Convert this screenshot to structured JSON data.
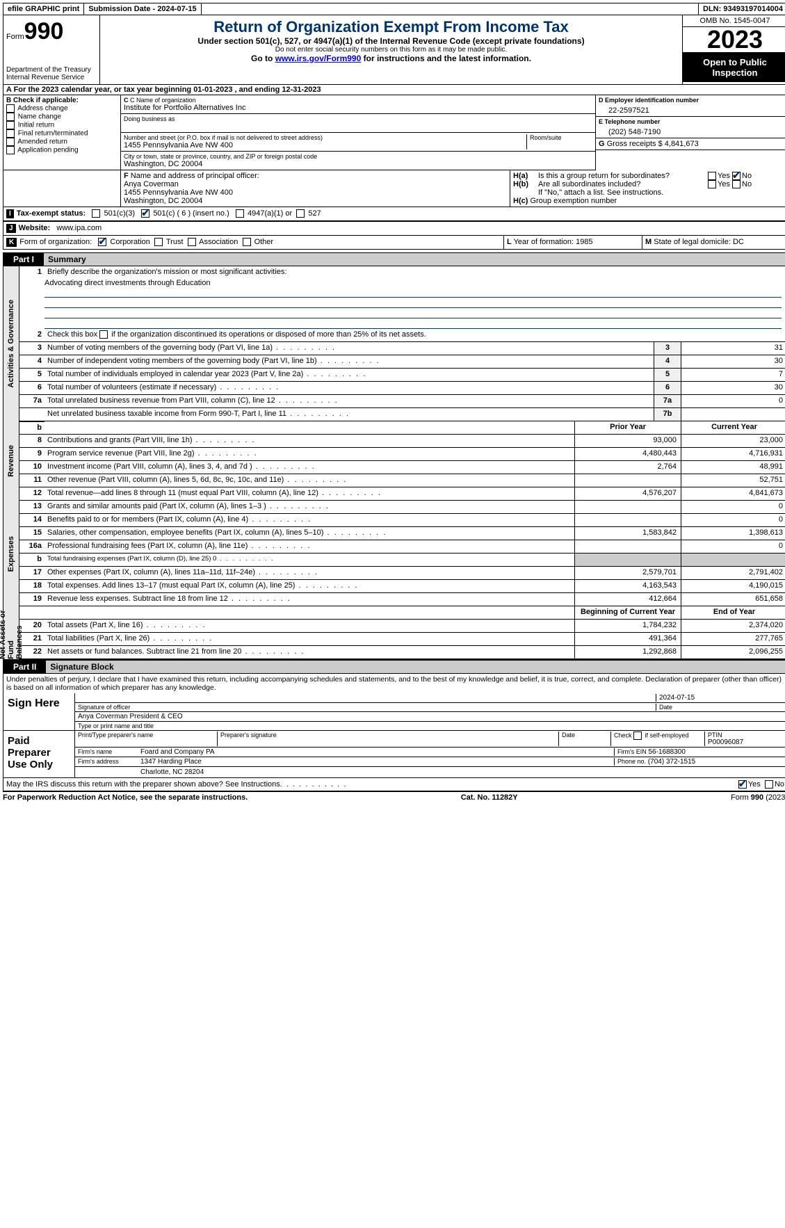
{
  "topbar": {
    "efile": "efile GRAPHIC print",
    "submission": "Submission Date - 2024-07-15",
    "dln": "DLN: 93493197014004"
  },
  "header": {
    "form_label": "Form",
    "form_num": "990",
    "title": "Return of Organization Exempt From Income Tax",
    "sub1": "Under section 501(c), 527, or 4947(a)(1) of the Internal Revenue Code (except private foundations)",
    "sub2": "Do not enter social security numbers on this form as it may be made public.",
    "sub3_a": "Go to ",
    "sub3_link": "www.irs.gov/Form990",
    "sub3_b": " for instructions and the latest information.",
    "dept": "Department of the Treasury\nInternal Revenue Service",
    "omb": "OMB No. 1545-0047",
    "year": "2023",
    "open": "Open to Public Inspection"
  },
  "rowA": "A For the 2023 calendar year, or tax year beginning 01-01-2023   , and ending 12-31-2023",
  "boxB": {
    "title": "B Check if applicable:",
    "opts": [
      "Address change",
      "Name change",
      "Initial return",
      "Final return/terminated",
      "Amended return",
      "Application pending"
    ]
  },
  "boxC": {
    "name_lbl": "C Name of organization",
    "name": "Institute for Portfolio Alternatives Inc",
    "dba_lbl": "Doing business as",
    "addr_lbl": "Number and street (or P.O. box if mail is not delivered to street address)",
    "addr": "1455 Pennsylvania Ave NW 400",
    "room_lbl": "Room/suite",
    "city_lbl": "City or town, state or province, country, and ZIP or foreign postal code",
    "city": "Washington, DC  20004"
  },
  "boxD": {
    "lbl": "D Employer identification number",
    "val": "22-2597521"
  },
  "boxE": {
    "lbl": "E Telephone number",
    "val": "(202) 548-7190"
  },
  "boxG": {
    "lbl": "G",
    "text": "Gross receipts $ 4,841,673"
  },
  "boxF": {
    "lbl": "F  Name and address of principal officer:",
    "name": "Anya Coverman",
    "addr1": "1455 Pennsylvania Ave NW 400",
    "addr2": "Washington, DC  20004"
  },
  "boxH": {
    "a": "Is this a group return for subordinates?",
    "b": "Are all subordinates included?",
    "note": "If \"No,\" attach a list. See instructions.",
    "c": "Group exemption number",
    "yes": "Yes",
    "no": "No"
  },
  "rowI": {
    "lbl": "Tax-exempt status:",
    "o1": "501(c)(3)",
    "o2": "501(c) ( 6 ) (insert no.)",
    "o3": "4947(a)(1) or",
    "o4": "527"
  },
  "rowJ": {
    "lbl": "Website:",
    "val": "www.ipa.com"
  },
  "rowK": {
    "lbl": "Form of organization:",
    "o1": "Corporation",
    "o2": "Trust",
    "o3": "Association",
    "o4": "Other"
  },
  "rowL": {
    "lbl": "L",
    "text": "Year of formation: 1985"
  },
  "rowM": {
    "lbl": "M",
    "text": "State of legal domicile: DC"
  },
  "part1": {
    "tab": "Part I",
    "title": "Summary"
  },
  "summary": {
    "l1_lbl": "Briefly describe the organization's mission or most significant activities:",
    "l1_val": "Advocating direct investments through Education",
    "l2": "Check this box      if the organization discontinued its operations or disposed of more than 25% of its net assets.",
    "lines_gov": [
      {
        "n": "3",
        "t": "Number of voting members of the governing body (Part VI, line 1a)",
        "b": "3",
        "v": "31"
      },
      {
        "n": "4",
        "t": "Number of independent voting members of the governing body (Part VI, line 1b)",
        "b": "4",
        "v": "30"
      },
      {
        "n": "5",
        "t": "Total number of individuals employed in calendar year 2023 (Part V, line 2a)",
        "b": "5",
        "v": "7"
      },
      {
        "n": "6",
        "t": "Total number of volunteers (estimate if necessary)",
        "b": "6",
        "v": "30"
      },
      {
        "n": "7a",
        "t": "Total unrelated business revenue from Part VIII, column (C), line 12",
        "b": "7a",
        "v": "0"
      },
      {
        "n": "",
        "t": "Net unrelated business taxable income from Form 990-T, Part I, line 11",
        "b": "7b",
        "v": ""
      }
    ],
    "prior_hdr": "Prior Year",
    "curr_hdr": "Current Year",
    "rev": [
      {
        "n": "8",
        "t": "Contributions and grants (Part VIII, line 1h)",
        "p": "93,000",
        "c": "23,000"
      },
      {
        "n": "9",
        "t": "Program service revenue (Part VIII, line 2g)",
        "p": "4,480,443",
        "c": "4,716,931"
      },
      {
        "n": "10",
        "t": "Investment income (Part VIII, column (A), lines 3, 4, and 7d )",
        "p": "2,764",
        "c": "48,991"
      },
      {
        "n": "11",
        "t": "Other revenue (Part VIII, column (A), lines 5, 6d, 8c, 9c, 10c, and 11e)",
        "p": "",
        "c": "52,751"
      },
      {
        "n": "12",
        "t": "Total revenue—add lines 8 through 11 (must equal Part VIII, column (A), line 12)",
        "p": "4,576,207",
        "c": "4,841,673"
      }
    ],
    "exp": [
      {
        "n": "13",
        "t": "Grants and similar amounts paid (Part IX, column (A), lines 1–3 )",
        "p": "",
        "c": "0"
      },
      {
        "n": "14",
        "t": "Benefits paid to or for members (Part IX, column (A), line 4)",
        "p": "",
        "c": "0"
      },
      {
        "n": "15",
        "t": "Salaries, other compensation, employee benefits (Part IX, column (A), lines 5–10)",
        "p": "1,583,842",
        "c": "1,398,613"
      },
      {
        "n": "16a",
        "t": "Professional fundraising fees (Part IX, column (A), line 11e)",
        "p": "",
        "c": "0"
      },
      {
        "n": "b",
        "t": "Total fundraising expenses (Part IX, column (D), line 25) 0",
        "p": "GREY",
        "c": "GREY",
        "small": true
      },
      {
        "n": "17",
        "t": "Other expenses (Part IX, column (A), lines 11a–11d, 11f–24e)",
        "p": "2,579,701",
        "c": "2,791,402"
      },
      {
        "n": "18",
        "t": "Total expenses. Add lines 13–17 (must equal Part IX, column (A), line 25)",
        "p": "4,163,543",
        "c": "4,190,015"
      },
      {
        "n": "19",
        "t": "Revenue less expenses. Subtract line 18 from line 12",
        "p": "412,664",
        "c": "651,658"
      }
    ],
    "beg_hdr": "Beginning of Current Year",
    "end_hdr": "End of Year",
    "net": [
      {
        "n": "20",
        "t": "Total assets (Part X, line 16)",
        "p": "1,784,232",
        "c": "2,374,020"
      },
      {
        "n": "21",
        "t": "Total liabilities (Part X, line 26)",
        "p": "491,364",
        "c": "277,765"
      },
      {
        "n": "22",
        "t": "Net assets or fund balances. Subtract line 21 from line 20",
        "p": "1,292,868",
        "c": "2,096,255"
      }
    ]
  },
  "sidetabs": {
    "gov": "Activities & Governance",
    "rev": "Revenue",
    "exp": "Expenses",
    "net": "Net Assets or Fund Balances"
  },
  "part2": {
    "tab": "Part II",
    "title": "Signature Block"
  },
  "sig": {
    "perjury": "Under penalties of perjury, I declare that I have examined this return, including accompanying schedules and statements, and to the best of my knowledge and belief, it is true, correct, and complete. Declaration of preparer (other than officer) is based on all information of which preparer has any knowledge.",
    "sign_here": "Sign Here",
    "date_top": "2024-07-15",
    "sig_of": "Signature of officer",
    "date_lbl": "Date",
    "officer": "Anya Coverman President & CEO",
    "type_lbl": "Type or print name and title",
    "paid": "Paid Preparer Use Only",
    "prep_name_lbl": "Print/Type preparer's name",
    "prep_sig_lbl": "Preparer's signature",
    "check_lbl": "Check        if self-employed",
    "ptin_lbl": "PTIN",
    "ptin": "P00096087",
    "firm_name_lbl": "Firm's name",
    "firm_name": "Foard and Company PA",
    "firm_ein_lbl": "Firm's EIN",
    "firm_ein": "56-1688300",
    "firm_addr_lbl": "Firm's address",
    "firm_addr1": "1347 Harding Place",
    "firm_addr2": "Charlotte, NC  28204",
    "phone_lbl": "Phone no.",
    "phone": "(704) 372-1515",
    "discuss": "May the IRS discuss this return with the preparer shown above? See Instructions."
  },
  "footer": {
    "left": "For Paperwork Reduction Act Notice, see the separate instructions.",
    "mid": "Cat. No. 11282Y",
    "right": "Form 990 (2023)"
  }
}
